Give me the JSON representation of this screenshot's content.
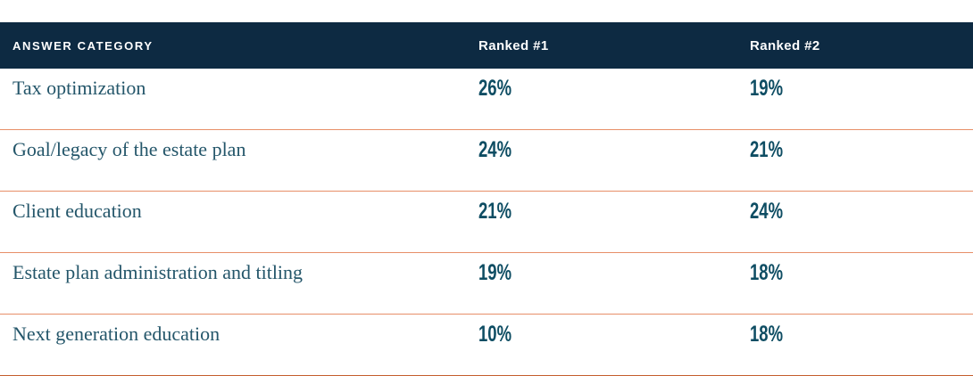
{
  "chart_data": {
    "type": "table",
    "title": "",
    "categories": [
      "Tax optimization",
      "Goal/legacy of the estate plan",
      "Client education",
      "Estate plan administration and titling",
      "Next generation education"
    ],
    "series": [
      {
        "name": "Ranked #1",
        "values": [
          26,
          24,
          21,
          19,
          10
        ]
      },
      {
        "name": "Ranked #2",
        "values": [
          19,
          21,
          24,
          18,
          18
        ]
      }
    ],
    "value_format": "percent"
  },
  "table": {
    "columns": {
      "category": "ANSWER CATEGORY",
      "rank1": "Ranked #1",
      "rank2": "Ranked #2"
    },
    "rows": [
      {
        "category": "Tax optimization",
        "rank1": "26%",
        "rank2": "19%"
      },
      {
        "category": "Goal/legacy of the estate plan",
        "rank1": "24%",
        "rank2": "21%"
      },
      {
        "category": "Client education",
        "rank1": "21%",
        "rank2": "24%"
      },
      {
        "category": "Estate plan administration and titling",
        "rank1": "19%",
        "rank2": "18%"
      },
      {
        "category": "Next generation education",
        "rank1": "10%",
        "rank2": "18%"
      }
    ]
  },
  "colors": {
    "header_background": "#0d2a42",
    "header_text": "#ffffff",
    "category_text": "#24566a",
    "percent_text": "#0e4d63",
    "row_divider": "#e78f68",
    "bottom_rule": "#c55e2d",
    "page_background": "#ffffff"
  }
}
